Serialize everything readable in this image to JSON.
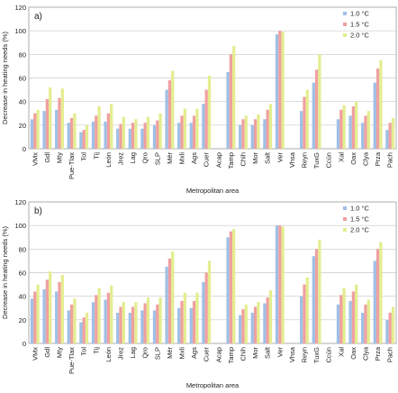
{
  "chart_data": [
    {
      "type": "bar",
      "panel_label": "a)",
      "xlabel": "Metropolitan area",
      "ylabel": "Decrease in heating needs (%)",
      "ylim": [
        0,
        120
      ],
      "yticks": [
        0,
        20,
        40,
        60,
        80,
        100,
        120
      ],
      "grid": true,
      "legend_position": "top-right",
      "categories": [
        "VMx",
        "Gdl",
        "Mty",
        "Pue-Tlax",
        "Tol",
        "Tij",
        "León",
        "Jrez",
        "Lag",
        "Qro",
        "SLP",
        "Mér",
        "Mxli",
        "Ags",
        "Cuer",
        "Acap",
        "Tamp",
        "Chih",
        "Mor",
        "Salt",
        "Ver",
        "Vhsa",
        "Reyn",
        "TuxG",
        "Ccún",
        "Xal",
        "Oax",
        "Clya",
        "Prza",
        "Pach"
      ],
      "series": [
        {
          "name": "1.0 °C",
          "color": "#9fc0e6",
          "values": [
            25,
            32,
            33,
            22,
            14,
            23,
            23,
            17,
            17,
            17,
            20,
            50,
            22,
            22,
            38,
            0,
            65,
            20,
            20,
            25,
            97,
            0,
            32,
            56,
            0,
            25,
            28,
            22,
            56,
            16
          ]
        },
        {
          "name": "1.5 °C",
          "color": "#f0a0a0",
          "values": [
            30,
            42,
            43,
            26,
            16,
            28,
            30,
            21,
            22,
            22,
            24,
            58,
            28,
            28,
            50,
            0,
            80,
            25,
            25,
            33,
            100,
            0,
            44,
            67,
            0,
            33,
            36,
            28,
            68,
            22
          ]
        },
        {
          "name": "2.0 °C",
          "color": "#e4ed90",
          "values": [
            33,
            52,
            51,
            30,
            20,
            36,
            38,
            27,
            25,
            27,
            30,
            66,
            34,
            34,
            62,
            0,
            87,
            28,
            29,
            38,
            99,
            0,
            50,
            80,
            0,
            37,
            40,
            32,
            75,
            26
          ]
        }
      ]
    },
    {
      "type": "bar",
      "panel_label": "b)",
      "xlabel": "Metropolitan area",
      "ylabel": "Decrease in heating needs (%)",
      "ylim": [
        0,
        120
      ],
      "yticks": [
        0,
        20,
        40,
        60,
        80,
        100,
        120
      ],
      "grid": true,
      "legend_position": "top-right",
      "categories": [
        "VMx",
        "Gdl",
        "Mty",
        "Pue-Tlax",
        "Tol",
        "Tij",
        "León",
        "Jrez",
        "Lag",
        "Qro",
        "SLP",
        "Mér",
        "Mxli",
        "Ags",
        "Cuer",
        "Acap",
        "Tamp",
        "Chih",
        "Mor",
        "Salt",
        "Ver",
        "Vhsa",
        "Reyn",
        "TuxG",
        "Ccún",
        "Xal",
        "Oax",
        "Clya",
        "Prza",
        "Pach"
      ],
      "series": [
        {
          "name": "1.0 °C",
          "color": "#9fc0e6",
          "values": [
            38,
            46,
            44,
            28,
            18,
            35,
            37,
            26,
            26,
            28,
            28,
            65,
            30,
            30,
            52,
            0,
            90,
            24,
            26,
            34,
            100,
            0,
            40,
            74,
            0,
            33,
            36,
            26,
            70,
            20
          ]
        },
        {
          "name": "1.5 °C",
          "color": "#f0a0a0",
          "values": [
            44,
            54,
            52,
            33,
            22,
            41,
            43,
            31,
            31,
            34,
            33,
            72,
            36,
            36,
            60,
            0,
            95,
            29,
            31,
            39,
            100,
            0,
            50,
            80,
            0,
            41,
            44,
            33,
            80,
            26
          ]
        },
        {
          "name": "2.0 °C",
          "color": "#e4ed90",
          "values": [
            50,
            61,
            58,
            38,
            26,
            47,
            49,
            35,
            35,
            39,
            39,
            78,
            43,
            43,
            70,
            0,
            97,
            33,
            35,
            45,
            99,
            0,
            56,
            88,
            0,
            47,
            50,
            37,
            86,
            31
          ]
        }
      ]
    }
  ]
}
